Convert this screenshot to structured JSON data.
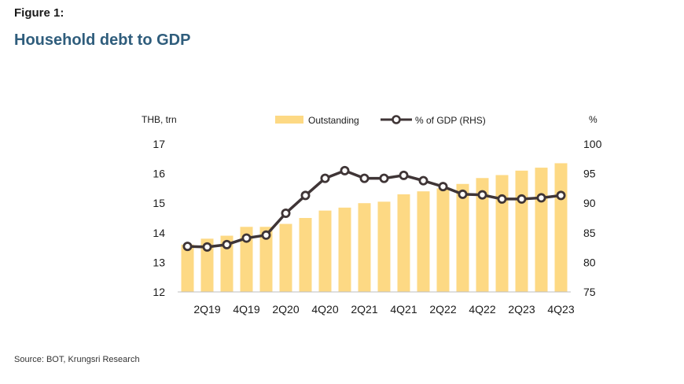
{
  "figure_label": "Figure 1:",
  "title": "Household debt to GDP",
  "source": "Source: BOT, Krungsri Research",
  "colors": {
    "bar": "#FDD984",
    "line": "#3F3536",
    "marker_fill": "#FFFFFF",
    "title": "#2F5D7C"
  },
  "chart_data": {
    "type": "bar",
    "left_unit": "THB, trn",
    "right_unit": "%",
    "categories": [
      "1Q19",
      "2Q19",
      "3Q19",
      "4Q19",
      "1Q20",
      "2Q20",
      "3Q20",
      "4Q20",
      "1Q21",
      "2Q21",
      "3Q21",
      "4Q21",
      "1Q22",
      "2Q22",
      "3Q22",
      "4Q22",
      "1Q23",
      "2Q23",
      "3Q23",
      "4Q23"
    ],
    "tick_labels": [
      "2Q19",
      "4Q19",
      "2Q20",
      "4Q20",
      "2Q21",
      "4Q21",
      "2Q22",
      "4Q22",
      "2Q23",
      "4Q23"
    ],
    "ylim_left": [
      12,
      17
    ],
    "yticks_left": [
      "12",
      "13",
      "14",
      "15",
      "16",
      "17"
    ],
    "ylim_right": [
      75,
      100
    ],
    "yticks_right": [
      "75",
      "80",
      "85",
      "90",
      "95",
      "100"
    ],
    "series": [
      {
        "name": "Outstanding",
        "axis": "left",
        "kind": "bar",
        "values": [
          13.6,
          13.8,
          13.9,
          14.2,
          14.2,
          14.3,
          14.5,
          14.75,
          14.85,
          15.0,
          15.05,
          15.3,
          15.4,
          15.5,
          15.65,
          15.85,
          15.95,
          16.1,
          16.2,
          16.35
        ]
      },
      {
        "name": "% of GDP (RHS)",
        "axis": "right",
        "kind": "line",
        "values": [
          82.7,
          82.6,
          83.0,
          84.1,
          84.6,
          88.3,
          91.3,
          94.2,
          95.5,
          94.2,
          94.2,
          94.7,
          93.8,
          92.8,
          91.5,
          91.4,
          90.7,
          90.7,
          90.9,
          91.3
        ]
      }
    ],
    "grid": false,
    "legend_position": "top"
  }
}
